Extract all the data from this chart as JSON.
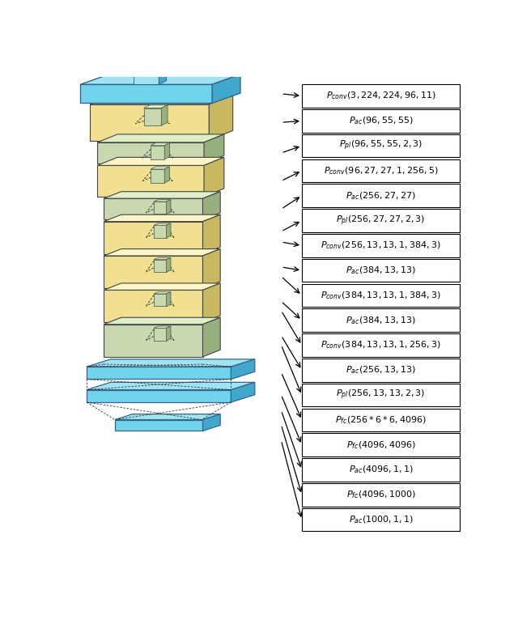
{
  "labels": [
    "$P_{conv}(3,224,224,96,11)$",
    "$P_{ac}(96,55,55)$",
    "$P_{pl}(96,55,55,2,3)$",
    "$P_{conv}(96,27,27,1,256,5)$",
    "$P_{ac}(256,27,27)$",
    "$P_{pl}(256,27,27,2,3)$",
    "$P_{conv}(256,13,13,1,384,3)$",
    "$P_{ac}(384,13,13)$",
    "$P_{conv}(384,13,13,1,384,3)$",
    "$P_{ac}(384,13,13)$",
    "$P_{conv}(384,13,13,1,256,3)$",
    "$P_{ac}(256,13,13)$",
    "$P_{pl}(256,13,13,2,3)$",
    "$P_{fc}(256*6*6,4096)$",
    "$P_{fc}(4096,4096)$",
    "$P_{ac}(4096,1,1)$",
    "$P_{fc}(4096,1000)$",
    "$P_{ac}(1000,1,1)$"
  ],
  "cyan": "#70d4ee",
  "cyan_top": "#a0e4f4",
  "cyan_side": "#40a8cc",
  "yellow": "#f0e090",
  "yellow_top": "#fdf5c8",
  "yellow_side": "#c8b860",
  "green": "#c8d8b0",
  "green_top": "#ddeec8",
  "green_side": "#98b080",
  "box_bg": "#ffffff",
  "box_edge": "#000000",
  "arrow_color": "#000000",
  "dash_color": "#333333",
  "edge_color": "#444444"
}
